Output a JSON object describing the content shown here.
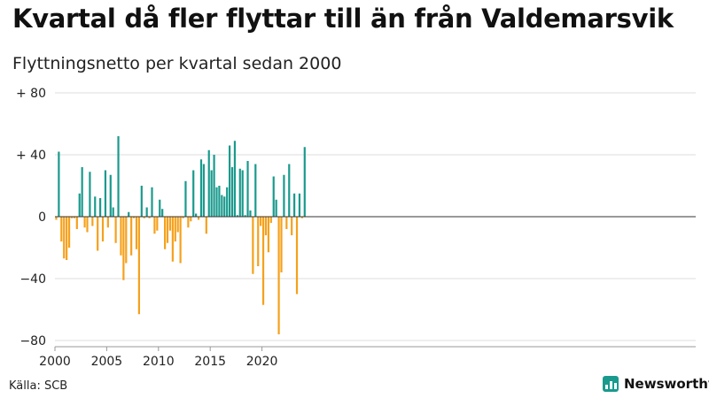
{
  "header": {
    "title": "Kvartal då fler flyttar till än från Valdemarsvik",
    "subtitle": "Flyttningsnetto per kvartal sedan 2000"
  },
  "footer": {
    "source": "Källa: SCB",
    "brand": "Newsworthy"
  },
  "colors": {
    "positive": "#1a9a8d",
    "negative": "#f5a11c",
    "grid": "#dddddd",
    "baseline": "#333333",
    "brand": "#1a9a8d"
  },
  "chart_data": {
    "type": "bar",
    "start": 2000,
    "ylim": [
      -80,
      80
    ],
    "y_ticks": [
      80,
      40,
      0,
      -40,
      -80
    ],
    "y_tick_labels": [
      "+ 80",
      "+ 40",
      "0",
      "−40",
      "−80"
    ],
    "x_ticks": [
      2000,
      2005,
      2010,
      2015,
      2020
    ],
    "x_tick_labels": [
      "2000",
      "2005",
      "2010",
      "2015",
      "2020"
    ],
    "grid": true,
    "values": [
      -2,
      42,
      -16,
      -27,
      -28,
      -20,
      -1,
      -1,
      -8,
      15,
      32,
      -7,
      -10,
      29,
      -6,
      13,
      -22,
      12,
      -16,
      30,
      -7,
      27,
      6,
      -17,
      52,
      -25,
      -41,
      -30,
      3,
      -25,
      -1,
      -21,
      -63,
      20,
      -1,
      6,
      -1,
      19,
      -11,
      -9,
      11,
      5,
      -21,
      -17,
      -9,
      -29,
      -16,
      -10,
      -30,
      -1,
      23,
      -7,
      -3,
      30,
      2,
      -2,
      37,
      34,
      -11,
      43,
      30,
      40,
      19,
      20,
      14,
      13,
      19,
      46,
      32,
      49,
      1,
      31,
      30,
      1,
      36,
      4,
      -37,
      34,
      -32,
      -6,
      -57,
      -12,
      -23,
      -4,
      26,
      11,
      -76,
      -36,
      27,
      -8,
      34,
      -12,
      15,
      -50,
      15,
      -1,
      45
    ]
  }
}
